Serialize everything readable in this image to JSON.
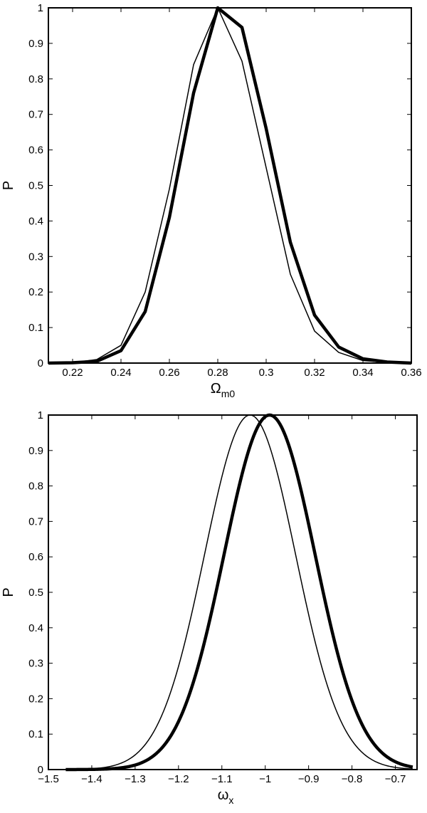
{
  "chart_data": [
    {
      "type": "line",
      "xlabel_main": "Ω",
      "xlabel_sub": "m0",
      "ylabel": "P",
      "xlim": [
        0.21,
        0.36
      ],
      "ylim": [
        0,
        1
      ],
      "x_ticks": [
        0.22,
        0.24,
        0.26,
        0.28,
        0.3,
        0.32,
        0.34,
        0.36
      ],
      "x_tick_labels": [
        "0.22",
        "0.24",
        "0.26",
        "0.28",
        "0.3",
        "0.32",
        "0.34",
        "0.36"
      ],
      "y_ticks": [
        0,
        0.1,
        0.2,
        0.3,
        0.4,
        0.5,
        0.6,
        0.7,
        0.8,
        0.9,
        1
      ],
      "y_tick_labels": [
        "0",
        "0.1",
        "0.2",
        "0.3",
        "0.4",
        "0.5",
        "0.6",
        "0.7",
        "0.8",
        "0.9",
        "1"
      ],
      "grid": false,
      "series": [
        {
          "style": "thin",
          "x": [
            0.21,
            0.22,
            0.23,
            0.24,
            0.25,
            0.26,
            0.27,
            0.28,
            0.29,
            0.3,
            0.31,
            0.32,
            0.33,
            0.34,
            0.35,
            0.36
          ],
          "y": [
            0.0,
            0.001,
            0.01,
            0.05,
            0.2,
            0.49,
            0.84,
            1.0,
            0.85,
            0.55,
            0.25,
            0.09,
            0.03,
            0.007,
            0.002,
            0.0
          ]
        },
        {
          "style": "thick",
          "x": [
            0.21,
            0.22,
            0.23,
            0.24,
            0.25,
            0.26,
            0.27,
            0.28,
            0.29,
            0.3,
            0.31,
            0.32,
            0.33,
            0.34,
            0.35,
            0.36
          ],
          "y": [
            0.0,
            0.001,
            0.005,
            0.035,
            0.145,
            0.41,
            0.76,
            1.0,
            0.945,
            0.66,
            0.34,
            0.135,
            0.045,
            0.012,
            0.003,
            0.0
          ]
        }
      ]
    },
    {
      "type": "line",
      "xlabel_main": "ω",
      "xlabel_sub": "x",
      "ylabel": "P",
      "xlim": [
        -1.5,
        -0.65
      ],
      "ylim": [
        0,
        1
      ],
      "x_ticks": [
        -1.5,
        -1.4,
        -1.3,
        -1.2,
        -1.1,
        -1,
        -0.9,
        -0.8,
        -0.7
      ],
      "x_tick_labels": [
        "−1.5",
        "−1.4",
        "−1.3",
        "−1.2",
        "−1.1",
        "−1",
        "−0.9",
        "−0.8",
        "−0.7"
      ],
      "y_ticks": [
        0,
        0.1,
        0.2,
        0.3,
        0.4,
        0.5,
        0.6,
        0.7,
        0.8,
        0.9,
        1
      ],
      "y_tick_labels": [
        "0",
        "0.1",
        "0.2",
        "0.3",
        "0.4",
        "0.5",
        "0.6",
        "0.7",
        "0.8",
        "0.9",
        "1"
      ],
      "grid": false,
      "series": [
        {
          "style": "thin",
          "model": "gaussian",
          "peak_x": -1.035,
          "sigma": 0.105,
          "x_range": [
            -1.46,
            -0.66
          ]
        },
        {
          "style": "thick",
          "model": "gaussian",
          "peak_x": -0.99,
          "sigma": 0.105,
          "x_range": [
            -1.46,
            -0.66
          ]
        }
      ]
    }
  ]
}
